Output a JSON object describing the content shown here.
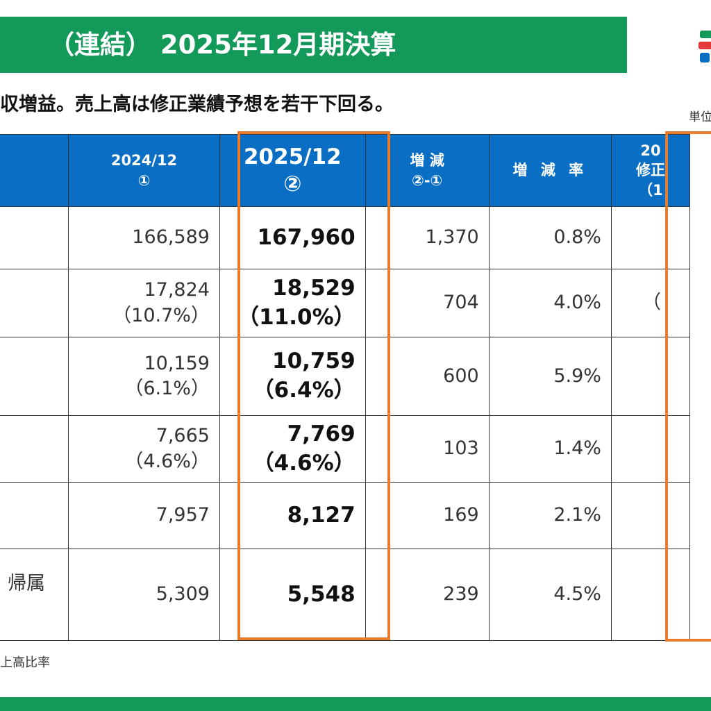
{
  "header": {
    "title": "（連結） 2025年12月期決算",
    "subtitle": "収増益。売上高は修正業績予想を若干下回る。",
    "unit": "単位"
  },
  "table": {
    "columns": [
      {
        "line1": "2024/12",
        "line2": "①"
      },
      {
        "line1": "2025/12",
        "line2": "②"
      },
      {
        "line1": "増 減",
        "line2": "②-①"
      },
      {
        "line1": "増 減 率",
        "line2": ""
      },
      {
        "line1": "20",
        "line2": "修正",
        "line3": "（1"
      }
    ],
    "rows": [
      {
        "label": "",
        "prev": "166,589",
        "prev_ratio": "",
        "cur": "167,960",
        "cur_ratio": "",
        "diff": "1,370",
        "rate": "0.8%",
        "forecast": ""
      },
      {
        "label": "",
        "prev": "17,824",
        "prev_ratio": "（10.7%）",
        "cur": "18,529",
        "cur_ratio": "（11.0%）",
        "diff": "704",
        "rate": "4.0%",
        "forecast": "（"
      },
      {
        "label": "",
        "prev": "10,159",
        "prev_ratio": "（6.1%）",
        "cur": "10,759",
        "cur_ratio": "（6.4%）",
        "diff": "600",
        "rate": "5.9%",
        "forecast": ""
      },
      {
        "label": "",
        "prev": "7,665",
        "prev_ratio": "（4.6%）",
        "cur": "7,769",
        "cur_ratio": "（4.6%）",
        "diff": "103",
        "rate": "1.4%",
        "forecast": ""
      },
      {
        "label": "",
        "prev": "7,957",
        "prev_ratio": "",
        "cur": "8,127",
        "cur_ratio": "",
        "diff": "169",
        "rate": "2.1%",
        "forecast": ""
      },
      {
        "label": "帰属",
        "prev": "5,309",
        "prev_ratio": "",
        "cur": "5,548",
        "cur_ratio": "",
        "diff": "239",
        "rate": "4.5%",
        "forecast": ""
      }
    ]
  },
  "footnote": "上高比率",
  "colors": {
    "brand_green": "#13995a",
    "header_blue": "#0a6fc4",
    "highlight_orange": "#e87c2c"
  }
}
